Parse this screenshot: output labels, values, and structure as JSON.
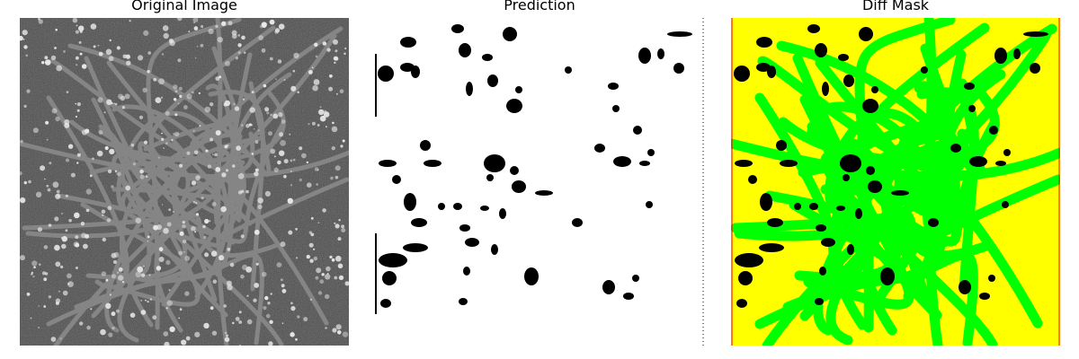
{
  "figure": {
    "panels": [
      {
        "title": "Original Image",
        "content": "grayscale micrograph of a fibrous network with bright clusters"
      },
      {
        "title": "Prediction",
        "content": "binary mask: white background with scattered black blobs"
      },
      {
        "title": "Diff Mask",
        "content": "color-coded difference map"
      }
    ]
  },
  "colors": {
    "original_background": "#4f4f4f",
    "original_fiber": "#8a8a8a",
    "original_speckle": "#e6e6e6",
    "prediction_background": "#ffffff",
    "prediction_blob": "#000000",
    "diff_background": "#ffff00",
    "diff_fiber": "#00ff00",
    "diff_blob": "#000000",
    "diff_edge": "#ff0000"
  }
}
